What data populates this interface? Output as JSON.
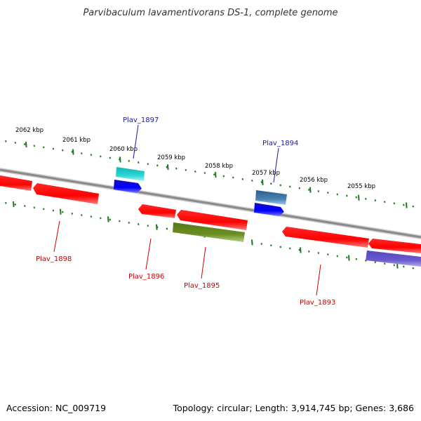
{
  "title": "Parvibaculum lavamentivorans DS-1, complete genome",
  "footer": {
    "accession": "Accession: NC_009719",
    "summary": "Topology: circular; Length: 3,914,745 bp; Genes: 3,686"
  },
  "colors": {
    "backbone": "#8a8a8a",
    "tick": "#1f7a1f",
    "cds": "#ff0000",
    "label_forward": "#1a1aa6",
    "label_reverse": "#cc0000"
  },
  "ticks": [
    {
      "label": "2062 kbp"
    },
    {
      "label": "2061 kbp"
    },
    {
      "label": "2060 kbp"
    },
    {
      "label": "2059 kbp"
    },
    {
      "label": "2058 kbp"
    },
    {
      "label": "2057 kbp"
    },
    {
      "label": "2056 kbp"
    },
    {
      "label": "2055 kbp"
    }
  ],
  "genes": [
    {
      "label": "Plav_1897",
      "strand": "forward"
    },
    {
      "label": "Plav_1894",
      "strand": "forward"
    },
    {
      "label": "Plav_1898",
      "strand": "reverse"
    },
    {
      "label": "Plav_1896",
      "strand": "reverse"
    },
    {
      "label": "Plav_1895",
      "strand": "reverse"
    },
    {
      "label": "Plav_1893",
      "strand": "reverse"
    }
  ]
}
